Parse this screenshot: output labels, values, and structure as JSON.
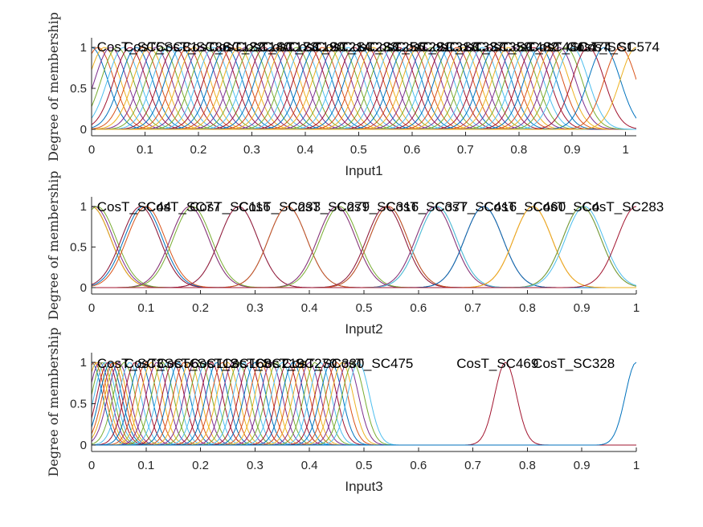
{
  "colors": [
    "#0072bd",
    "#d95319",
    "#edb120",
    "#7e2f8e",
    "#77ac30",
    "#4dbeee",
    "#a2142f"
  ],
  "chart_data": [
    {
      "type": "line",
      "xlabel": "Input1",
      "ylabel": "Degree of membership",
      "xlim": [
        0,
        1.02
      ],
      "ylim": [
        0,
        1
      ],
      "xticks": [
        "0",
        "0.1",
        "0.2",
        "0.3",
        "0.4",
        "0.5",
        "0.6",
        "0.7",
        "0.8",
        "0.9",
        "1"
      ],
      "yticks": [
        "0",
        "0.5",
        "1"
      ],
      "curve_sigma": 0.03,
      "series_centers": [
        0.0,
        0.012,
        0.024,
        0.036,
        0.048,
        0.06,
        0.072,
        0.084,
        0.096,
        0.108,
        0.12,
        0.132,
        0.144,
        0.156,
        0.168,
        0.18,
        0.192,
        0.204,
        0.216,
        0.228,
        0.24,
        0.252,
        0.264,
        0.276,
        0.288,
        0.3,
        0.312,
        0.324,
        0.336,
        0.348,
        0.36,
        0.372,
        0.384,
        0.396,
        0.408,
        0.42,
        0.432,
        0.444,
        0.456,
        0.468,
        0.48,
        0.492,
        0.504,
        0.516,
        0.528,
        0.54,
        0.552,
        0.564,
        0.576,
        0.588,
        0.6,
        0.612,
        0.624,
        0.636,
        0.648,
        0.66,
        0.672,
        0.684,
        0.696,
        0.708,
        0.72,
        0.732,
        0.744,
        0.756,
        0.768,
        0.78,
        0.792,
        0.804,
        0.816,
        0.828,
        0.84,
        0.852,
        0.864,
        0.876,
        0.888,
        0.9,
        0.93,
        0.96,
        0.99,
        1.02
      ],
      "mf_labels": [
        {
          "text": "CosT_SC5",
          "x": 0.01
        },
        {
          "text": "CosT_SC81",
          "x": 0.06
        },
        {
          "text": "CosT_SC86",
          "x": 0.12
        },
        {
          "text": "CosT_SC122",
          "x": 0.17
        },
        {
          "text": "CosT_SC140",
          "x": 0.22
        },
        {
          "text": "CosT_SC173",
          "x": 0.27
        },
        {
          "text": "CosT_SC190",
          "x": 0.32
        },
        {
          "text": "CosT_SC214",
          "x": 0.37
        },
        {
          "text": "CosT_SC233",
          "x": 0.42
        },
        {
          "text": "CosT_SC256",
          "x": 0.47
        },
        {
          "text": "CosT_SC291",
          "x": 0.52
        },
        {
          "text": "CosT_SC318",
          "x": 0.57
        },
        {
          "text": "CosT_SC337",
          "x": 0.62
        },
        {
          "text": "CosT_SC359",
          "x": 0.67
        },
        {
          "text": "CosT_SC402",
          "x": 0.72
        },
        {
          "text": "CosT_SC441",
          "x": 0.77
        },
        {
          "text": "CosT_SC474",
          "x": 0.82
        },
        {
          "text": "CosT_SC1",
          "x": 0.89
        },
        {
          "text": "CosT_SC574",
          "x": 0.91
        }
      ]
    },
    {
      "type": "line",
      "xlabel": "Input2",
      "ylabel": "Degree of membership",
      "xlim": [
        0,
        1
      ],
      "ylim": [
        0,
        1
      ],
      "xticks": [
        "0",
        "0.1",
        "0.2",
        "0.3",
        "0.4",
        "0.5",
        "0.6",
        "0.7",
        "0.8",
        "0.9",
        "1"
      ],
      "yticks": [
        "0",
        "0.5",
        "1"
      ],
      "curve_sigma": 0.035,
      "series_centers": [
        0.0,
        0.0,
        0.0,
        0.005,
        0.01,
        0.09,
        0.09,
        0.095,
        0.1,
        0.18,
        0.18,
        0.185,
        0.27,
        0.27,
        0.36,
        0.36,
        0.45,
        0.45,
        0.455,
        0.54,
        0.54,
        0.545,
        0.545,
        0.63,
        0.63,
        0.635,
        0.635,
        0.72,
        0.72,
        0.81,
        0.81,
        0.9,
        0.9,
        0.905,
        1.0
      ],
      "mf_labels": [
        {
          "text": "CosT_SC44",
          "x": 0.01
        },
        {
          "text": "CosT_SC77",
          "x": 0.1
        },
        {
          "text": "CosT_SC116",
          "x": 0.18
        },
        {
          "text": "CosT_SC233",
          "x": 0.27
        },
        {
          "text": "CosT_SC279",
          "x": 0.36
        },
        {
          "text": "CosT_SC316",
          "x": 0.45
        },
        {
          "text": "CosT_SC377",
          "x": 0.54
        },
        {
          "text": "CosT_SC416",
          "x": 0.63
        },
        {
          "text": "CosT_SC460",
          "x": 0.72
        },
        {
          "text": "CosT_SC4",
          "x": 0.81
        },
        {
          "text": "CosT_SC283",
          "x": 0.9
        }
      ]
    },
    {
      "type": "line",
      "xlabel": "Input3",
      "ylabel": "Degree of membership",
      "xlim": [
        0,
        1
      ],
      "ylim": [
        0,
        1
      ],
      "xticks": [
        "0",
        "0.1",
        "0.2",
        "0.3",
        "0.4",
        "0.5",
        "0.6",
        "0.7",
        "0.8",
        "0.9",
        "1"
      ],
      "yticks": [
        "0",
        "0.5",
        "1"
      ],
      "curve_sigma": 0.02,
      "series_centers": [
        0.0,
        0.005,
        0.01,
        0.015,
        0.02,
        0.025,
        0.03,
        0.035,
        0.04,
        0.045,
        0.05,
        0.06,
        0.07,
        0.08,
        0.09,
        0.1,
        0.11,
        0.12,
        0.13,
        0.14,
        0.15,
        0.16,
        0.17,
        0.18,
        0.19,
        0.2,
        0.21,
        0.22,
        0.23,
        0.24,
        0.25,
        0.26,
        0.27,
        0.28,
        0.29,
        0.3,
        0.31,
        0.32,
        0.33,
        0.34,
        0.35,
        0.36,
        0.37,
        0.38,
        0.39,
        0.4,
        0.41,
        0.42,
        0.43,
        0.44,
        0.45,
        0.46,
        0.47,
        0.48,
        0.49,
        0.76,
        1.0
      ],
      "mf_labels": [
        {
          "text": "CosT_SC3",
          "x": 0.01
        },
        {
          "text": "CosT_SC56",
          "x": 0.06
        },
        {
          "text": "CosT_SC112",
          "x": 0.12
        },
        {
          "text": "CosT_SC168",
          "x": 0.18
        },
        {
          "text": "CosT_SC219",
          "x": 0.24
        },
        {
          "text": "CosT_SC270",
          "x": 0.3
        },
        {
          "text": "CosT_SC330",
          "x": 0.35
        },
        {
          "text": "CosT_SC475",
          "x": 0.44
        },
        {
          "text": "CosT_SC469",
          "x": 0.67
        },
        {
          "text": "CosT_SC328",
          "x": 0.81
        }
      ]
    }
  ]
}
